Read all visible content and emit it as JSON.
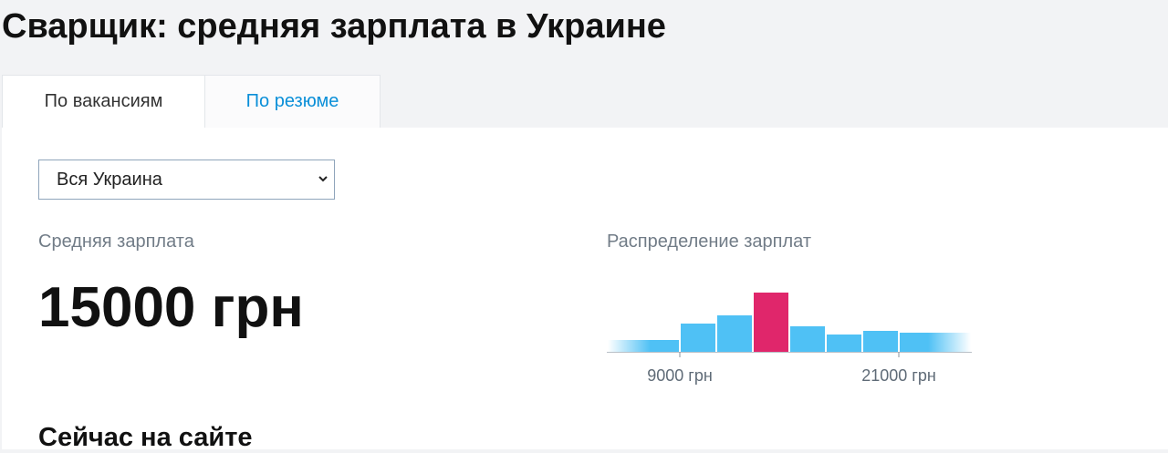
{
  "header": {
    "title": "Сварщик: средняя зарплата в Украине"
  },
  "tabs": [
    {
      "label": "По вакансиям",
      "active": true
    },
    {
      "label": "По резюме",
      "active": false
    }
  ],
  "region_select": {
    "value": "Вся Украина"
  },
  "average": {
    "label": "Средняя зарплата",
    "value": "15000 грн"
  },
  "chart_data": {
    "type": "histogram",
    "title": "Распределение зарплат",
    "bins": [
      5000,
      9000,
      11000,
      13000,
      15000,
      17000,
      19000,
      21000,
      25000
    ],
    "values": [
      13,
      31,
      40,
      65,
      28,
      19,
      23,
      21
    ],
    "colors": [
      "#4fc1f5",
      "#4fc1f5",
      "#4fc1f5",
      "#e0266b",
      "#4fc1f5",
      "#4fc1f5",
      "#4fc1f5",
      "#4fc1f5"
    ],
    "xlim": [
      5000,
      25000
    ],
    "ylim": [
      0,
      70
    ],
    "xticks": [
      {
        "value": 9000,
        "label": "9000 грн"
      },
      {
        "value": 21000,
        "label": "21000 грн"
      }
    ]
  },
  "section": {
    "title": "Сейчас на сайте"
  }
}
